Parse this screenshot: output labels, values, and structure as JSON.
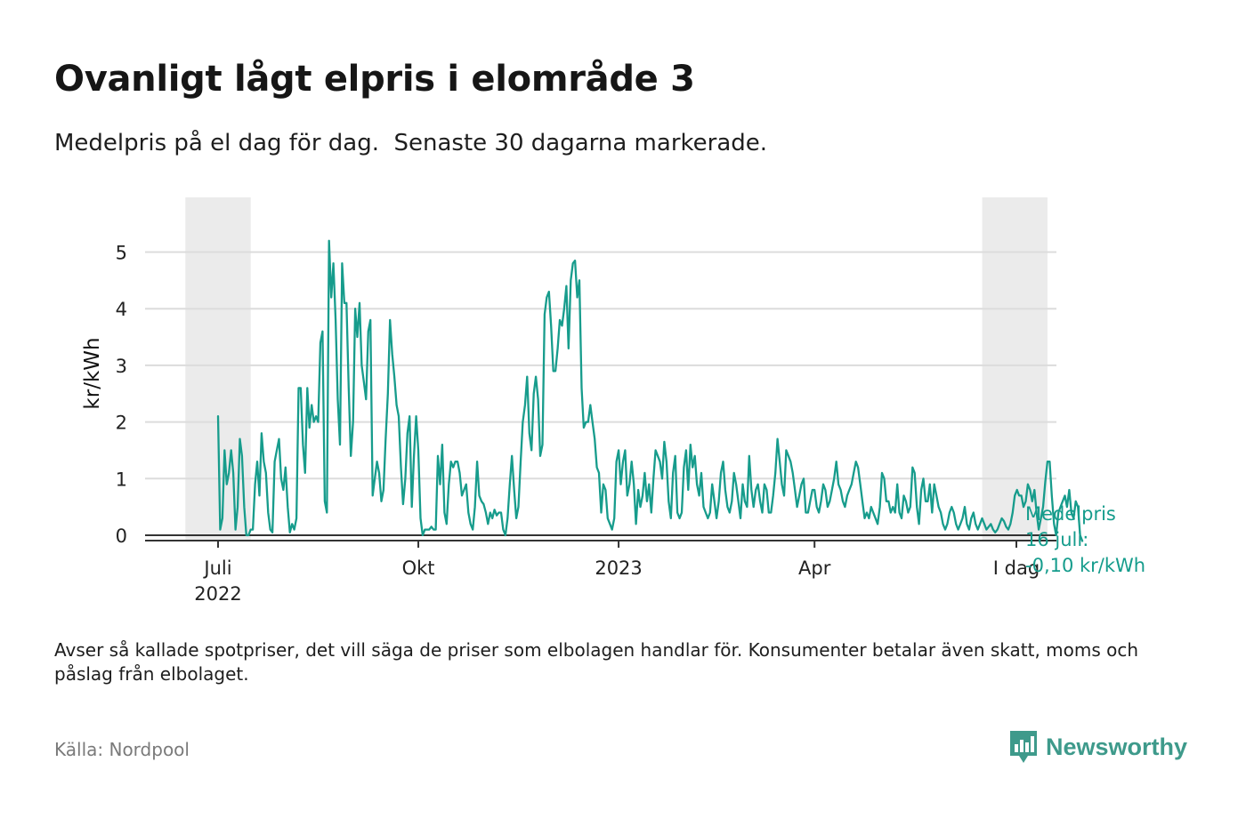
{
  "title": "Ovanligt lågt elpris i elområde 3",
  "subtitle": "Medelpris på el dag för dag.  Senaste 30 dagarna markerade.",
  "note": "Avser så kallade spotpriser, det vill säga de priser som elbolagen handlar för. Konsumenter betalar även skatt, moms och påslag från elbolaget.",
  "source": "Källa: Nordpool",
  "logo": {
    "text": "Newsworthy",
    "icon": "bar-chart-speech-icon"
  },
  "colors": {
    "line": "#179c8c",
    "highlight": "#ebebeb",
    "grid": "#dcdcdc",
    "axis": "#333333"
  },
  "chart_data": {
    "type": "line",
    "title": "Ovanligt lågt elpris i elområde 3",
    "ylabel": "kr/kWh",
    "xlabel": "",
    "ylim": [
      -0.2,
      5.5
    ],
    "xlim_days": [
      -12,
      372
    ],
    "grid": "horizontal",
    "y_ticks": [
      0,
      1,
      2,
      3,
      4,
      5
    ],
    "x_ticks": [
      {
        "day": 0,
        "label": "Juli",
        "label2": "2022"
      },
      {
        "day": 92,
        "label": "Okt",
        "label2": ""
      },
      {
        "day": 184,
        "label": "2023",
        "label2": ""
      },
      {
        "day": 274,
        "label": "Apr",
        "label2": ""
      },
      {
        "day": 380,
        "label": "I dag",
        "label2": ""
      }
    ],
    "highlight_periods": [
      {
        "start_day": -15,
        "end_day": 15
      },
      {
        "start_day": 351,
        "end_day": 381
      }
    ],
    "series": [
      {
        "name": "Medelpris",
        "start_date": "2022-07-01",
        "values": [
          2.1,
          0.1,
          0.3,
          1.5,
          0.9,
          1.1,
          1.5,
          1.1,
          0.1,
          0.5,
          1.7,
          1.4,
          0.5,
          0.0,
          0.0,
          0.1,
          0.1,
          0.9,
          1.3,
          0.7,
          1.8,
          1.3,
          1.1,
          0.4,
          0.1,
          0.05,
          1.3,
          1.5,
          1.7,
          1.0,
          0.8,
          1.2,
          0.5,
          0.05,
          0.2,
          0.1,
          0.3,
          2.6,
          2.6,
          1.6,
          1.1,
          2.6,
          1.9,
          2.3,
          2.0,
          2.1,
          2.0,
          3.4,
          3.6,
          0.6,
          0.4,
          5.2,
          4.2,
          4.8,
          3.8,
          2.4,
          1.6,
          4.8,
          4.1,
          4.1,
          2.6,
          1.4,
          2.0,
          4.0,
          3.5,
          4.1,
          3.0,
          2.7,
          2.4,
          3.6,
          3.8,
          0.7,
          1.0,
          1.3,
          1.1,
          0.6,
          0.8,
          1.7,
          2.5,
          3.8,
          3.2,
          2.8,
          2.3,
          2.1,
          1.2,
          0.55,
          1.0,
          1.8,
          2.1,
          0.5,
          1.4,
          2.1,
          1.5,
          0.3,
          0.0,
          0.1,
          0.1,
          0.1,
          0.15,
          0.1,
          0.1,
          1.4,
          0.9,
          1.6,
          0.4,
          0.2,
          0.9,
          1.3,
          1.2,
          1.3,
          1.3,
          1.1,
          0.7,
          0.8,
          0.9,
          0.4,
          0.2,
          0.1,
          0.5,
          1.3,
          0.7,
          0.6,
          0.55,
          0.4,
          0.2,
          0.4,
          0.3,
          0.45,
          0.35,
          0.4,
          0.4,
          0.1,
          0.0,
          0.3,
          0.9,
          1.4,
          0.8,
          0.3,
          0.5,
          1.3,
          2.0,
          2.3,
          2.8,
          1.8,
          1.5,
          2.5,
          2.8,
          2.4,
          1.4,
          1.6,
          3.9,
          4.2,
          4.3,
          3.7,
          2.9,
          2.9,
          3.3,
          3.8,
          3.7,
          4.0,
          4.4,
          3.3,
          4.5,
          4.8,
          4.85,
          4.2,
          4.5,
          2.6,
          1.9,
          2.0,
          2.0,
          2.3,
          2.0,
          1.7,
          1.2,
          1.1,
          0.4,
          0.9,
          0.8,
          0.3,
          0.2,
          0.1,
          0.3,
          1.3,
          1.5,
          0.9,
          1.3,
          1.5,
          0.7,
          0.9,
          1.3,
          0.9,
          0.2,
          0.8,
          0.5,
          0.7,
          1.1,
          0.6,
          0.9,
          0.4,
          1.0,
          1.5,
          1.4,
          1.3,
          1.0,
          1.65,
          1.3,
          0.6,
          0.3,
          1.1,
          1.4,
          0.4,
          0.3,
          0.4,
          1.2,
          1.5,
          0.8,
          1.6,
          1.2,
          1.4,
          0.9,
          0.7,
          1.1,
          0.5,
          0.4,
          0.3,
          0.4,
          0.9,
          0.6,
          0.3,
          0.6,
          1.1,
          1.3,
          0.8,
          0.5,
          0.4,
          0.6,
          1.1,
          0.9,
          0.6,
          0.3,
          0.9,
          0.6,
          0.5,
          1.4,
          0.8,
          0.5,
          0.8,
          0.9,
          0.6,
          0.4,
          0.9,
          0.8,
          0.4,
          0.4,
          0.7,
          1.1,
          1.7,
          1.3,
          0.9,
          0.7,
          1.5,
          1.4,
          1.3,
          1.1,
          0.8,
          0.5,
          0.7,
          0.9,
          1.0,
          0.4,
          0.4,
          0.6,
          0.8,
          0.8,
          0.5,
          0.4,
          0.6,
          0.9,
          0.8,
          0.5,
          0.6,
          0.8,
          1.0,
          1.3,
          0.9,
          0.8,
          0.6,
          0.5,
          0.7,
          0.8,
          0.9,
          1.1,
          1.3,
          1.2,
          0.9,
          0.6,
          0.3,
          0.4,
          0.3,
          0.5,
          0.4,
          0.3,
          0.2,
          0.5,
          1.1,
          1.0,
          0.6,
          0.6,
          0.4,
          0.5,
          0.4,
          0.9,
          0.4,
          0.3,
          0.7,
          0.6,
          0.4,
          0.5,
          1.2,
          1.1,
          0.5,
          0.2,
          0.8,
          1.0,
          0.6,
          0.6,
          0.9,
          0.4,
          0.9,
          0.7,
          0.5,
          0.4,
          0.2,
          0.1,
          0.2,
          0.4,
          0.5,
          0.4,
          0.2,
          0.1,
          0.2,
          0.3,
          0.5,
          0.2,
          0.1,
          0.3,
          0.4,
          0.2,
          0.1,
          0.2,
          0.3,
          0.2,
          0.1,
          0.15,
          0.2,
          0.1,
          0.05,
          0.1,
          0.2,
          0.3,
          0.25,
          0.15,
          0.1,
          0.2,
          0.4,
          0.7,
          0.8,
          0.7,
          0.7,
          0.5,
          0.6,
          0.9,
          0.8,
          0.6,
          0.8,
          0.4,
          0.1,
          0.3,
          0.5,
          0.95,
          1.3,
          1.3,
          0.7,
          0.2,
          0.0,
          0.4,
          0.5,
          0.6,
          0.7,
          0.5,
          0.8,
          0.4,
          0.3,
          0.6,
          0.5,
          0.0,
          -0.1
        ]
      }
    ],
    "annotation": {
      "line1": "Medelpris",
      "line2": "16 juli:",
      "line3": "-0,10 kr/kWh"
    }
  }
}
